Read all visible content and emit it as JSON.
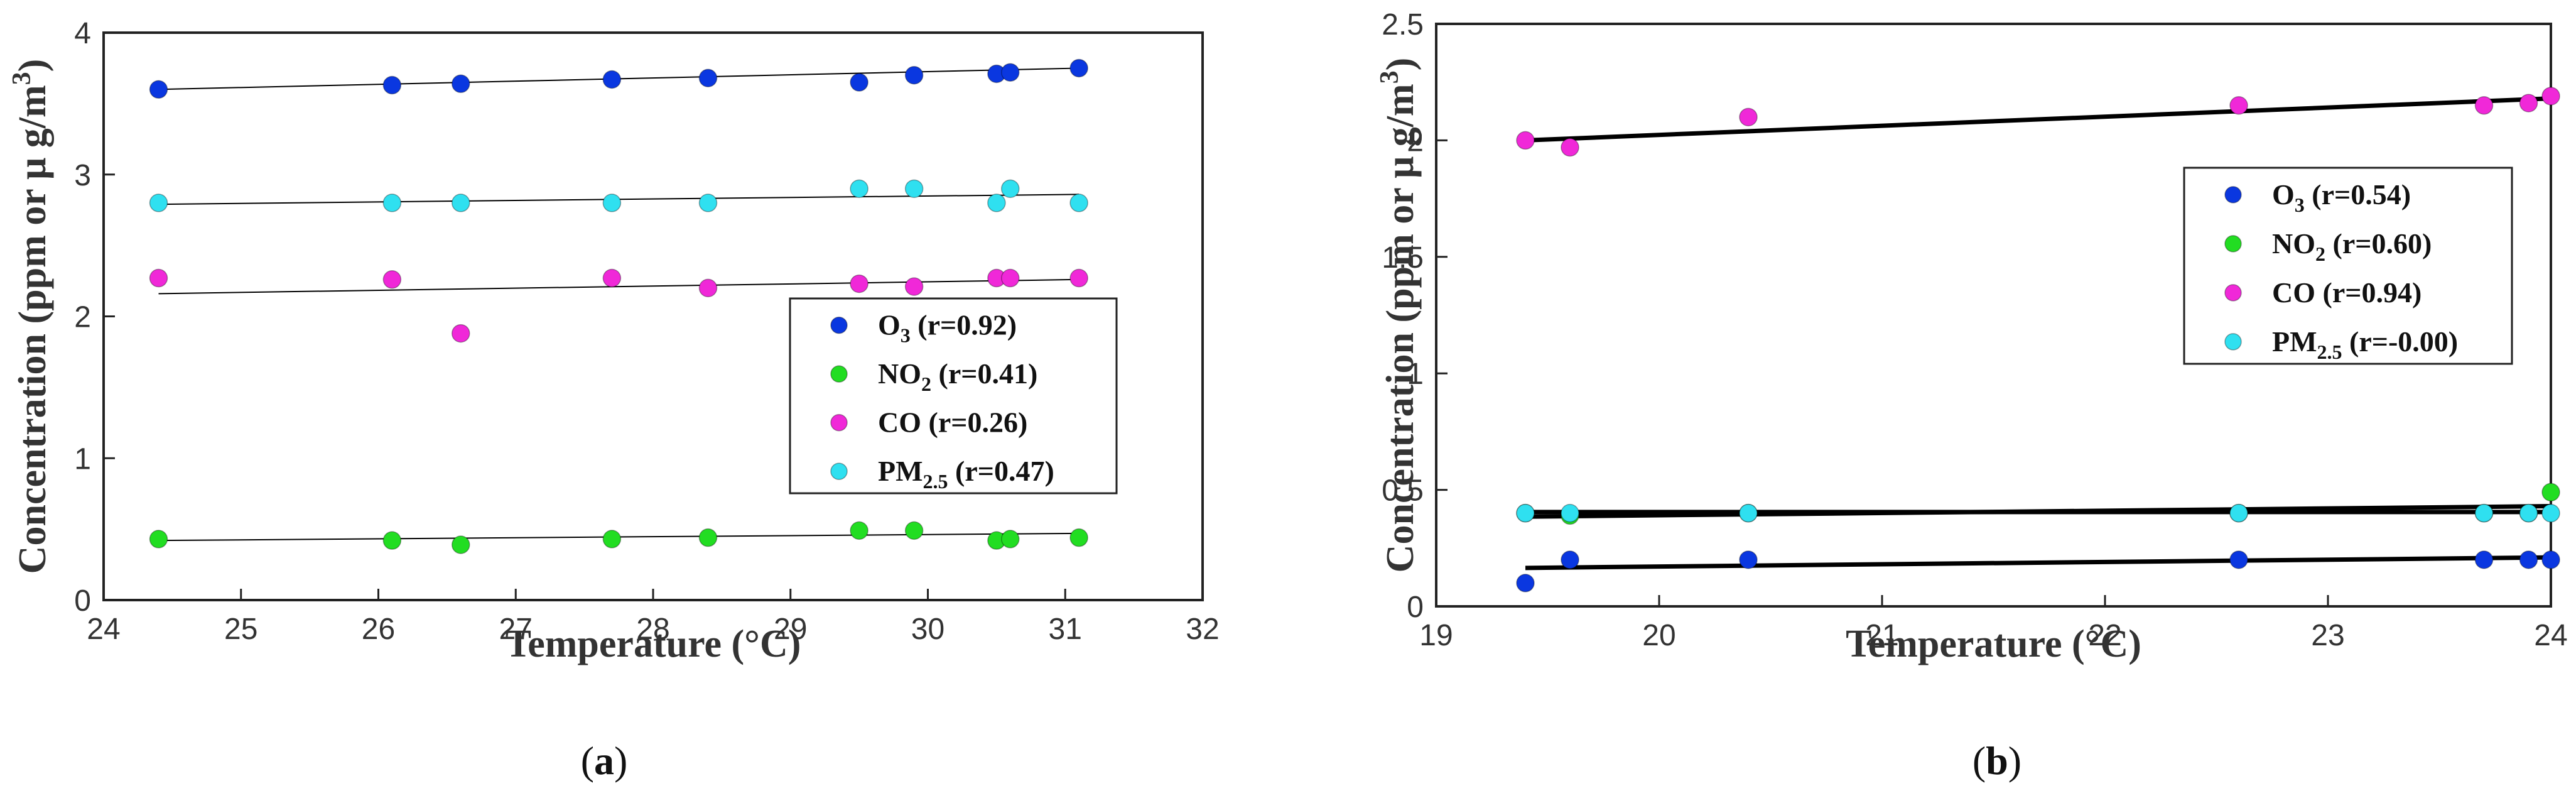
{
  "chart_data": [
    {
      "id": "a",
      "type": "scatter",
      "caption": {
        "open": "(",
        "letter": "a",
        "close": ")"
      },
      "xlabel": "Temperature (°C)",
      "ylabel": {
        "main": "Concentration (ppm or μ g/m",
        "sup": "3",
        "close": ")"
      },
      "xlim": [
        24,
        32
      ],
      "ylim": [
        0,
        4
      ],
      "xticks": [
        24,
        25,
        26,
        27,
        28,
        29,
        30,
        31,
        32
      ],
      "yticks": [
        0,
        1,
        2,
        3,
        4
      ],
      "x": [
        24.4,
        26.1,
        26.6,
        27.7,
        28.4,
        29.5,
        29.9,
        30.5,
        30.6,
        31.1
      ],
      "legend_position": "center-right",
      "series": [
        {
          "name": "O3",
          "base": "O",
          "sub": "3",
          "r_label": "(r=0.92)",
          "color": "#0a37e0",
          "values": [
            3.6,
            3.63,
            3.64,
            3.67,
            3.68,
            3.65,
            3.7,
            3.71,
            3.72,
            3.75
          ],
          "fit": [
            3.6,
            3.75
          ]
        },
        {
          "name": "NO2",
          "base": "NO",
          "sub": "2",
          "r_label": "(r=0.41)",
          "color": "#22dd22",
          "values": [
            0.43,
            0.42,
            0.39,
            0.43,
            0.44,
            0.49,
            0.49,
            0.42,
            0.43,
            0.44
          ],
          "fit": [
            0.42,
            0.47
          ]
        },
        {
          "name": "CO",
          "base": "CO",
          "sub": "",
          "r_label": "(r=0.26)",
          "color": "#f028d8",
          "values": [
            2.27,
            2.26,
            1.88,
            2.27,
            2.2,
            2.23,
            2.21,
            2.27,
            2.27,
            2.27
          ],
          "fit": [
            2.16,
            2.26
          ]
        },
        {
          "name": "PM2.5",
          "base": "PM",
          "sub": "2.5",
          "r_label": "(r=0.47)",
          "color": "#2fe0f0",
          "values": [
            2.8,
            2.8,
            2.8,
            2.8,
            2.8,
            2.9,
            2.9,
            2.8,
            2.9,
            2.8
          ],
          "fit": [
            2.79,
            2.86
          ]
        }
      ]
    },
    {
      "id": "b",
      "type": "scatter",
      "caption": {
        "open": "(",
        "letter": "b",
        "close": ")"
      },
      "xlabel": "Temperature (°C)",
      "ylabel": {
        "main": "Concentration (ppm or μ g/m",
        "sup": "3",
        "close": ")"
      },
      "xlim": [
        19,
        24
      ],
      "ylim": [
        0,
        2.5
      ],
      "xticks": [
        19,
        20,
        21,
        22,
        23,
        24
      ],
      "yticks": [
        0,
        0.5,
        1,
        1.5,
        2,
        2.5
      ],
      "x": [
        19.4,
        19.6,
        20.4,
        22.6,
        23.7,
        23.9,
        24.0
      ],
      "legend_position": "center-right",
      "series": [
        {
          "name": "O3",
          "base": "O",
          "sub": "3",
          "r_label": "(r=0.54)",
          "color": "#0a37e0",
          "values": [
            0.1,
            0.2,
            0.2,
            0.2,
            0.2,
            0.2,
            0.2
          ],
          "fit": [
            0.165,
            0.21
          ]
        },
        {
          "name": "NO2",
          "base": "NO",
          "sub": "2",
          "r_label": "(r=0.60)",
          "color": "#22dd22",
          "values": [
            0.4,
            0.39,
            0.4,
            0.4,
            0.4,
            0.4,
            0.49
          ],
          "fit": [
            0.385,
            0.43
          ]
        },
        {
          "name": "CO",
          "base": "CO",
          "sub": "",
          "r_label": "(r=0.94)",
          "color": "#f028d8",
          "values": [
            2.0,
            1.97,
            2.1,
            2.15,
            2.15,
            2.16,
            2.19
          ],
          "fit": [
            2.0,
            2.18
          ]
        },
        {
          "name": "PM2.5",
          "base": "PM",
          "sub": "2.5",
          "r_label": "(r=-0.00)",
          "color": "#2fe0f0",
          "values": [
            0.4,
            0.4,
            0.4,
            0.4,
            0.4,
            0.4,
            0.4
          ],
          "fit": [
            0.405,
            0.405
          ]
        }
      ]
    }
  ]
}
